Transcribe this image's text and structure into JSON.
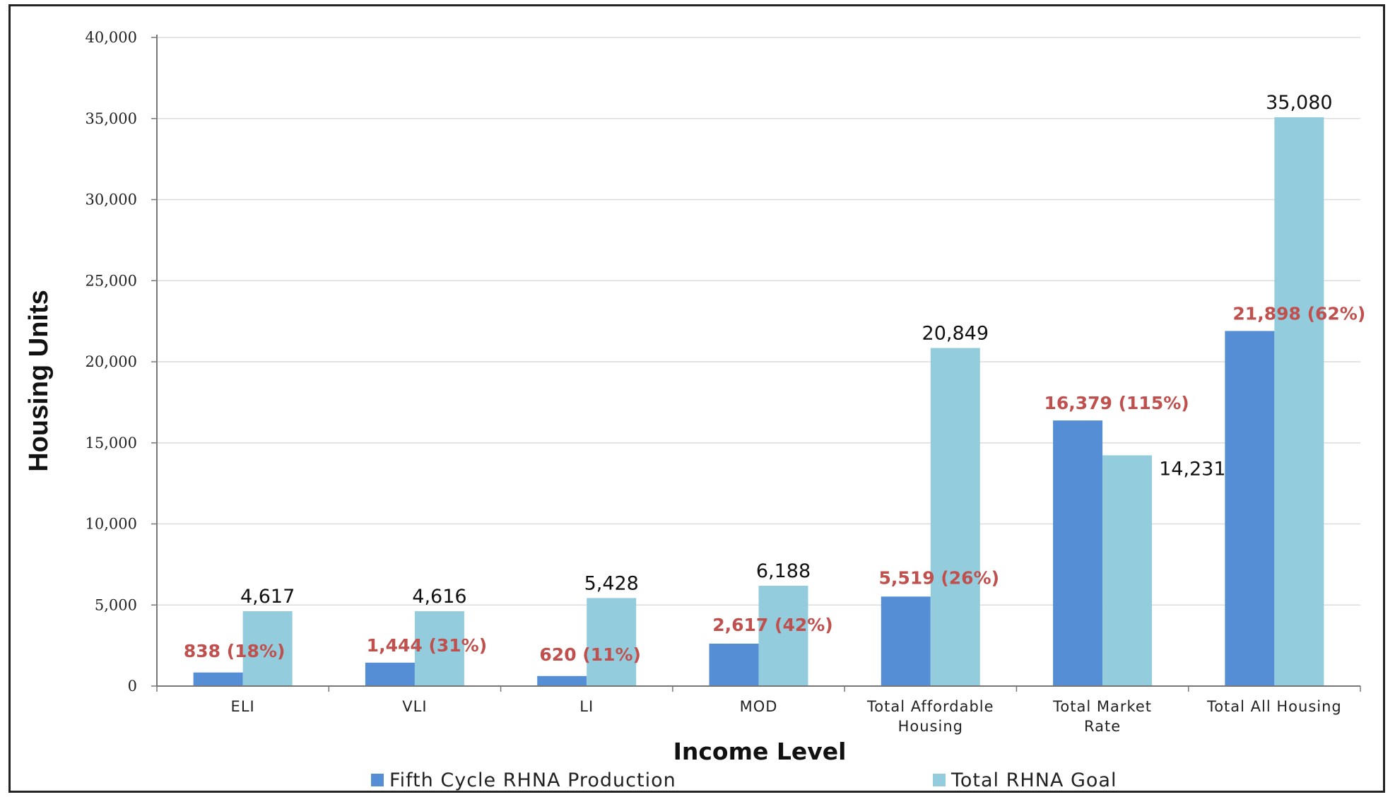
{
  "chart_data": {
    "type": "bar",
    "xlabel": "Income Level",
    "ylabel": "Housing Units",
    "ylim": [
      0,
      40000
    ],
    "yticks": [
      0,
      5000,
      10000,
      15000,
      20000,
      25000,
      30000,
      35000,
      40000
    ],
    "ytick_labels": [
      "0",
      "5,000",
      "10,000",
      "15,000",
      "20,000",
      "25,000",
      "30,000",
      "35,000",
      "40,000"
    ],
    "grid": true,
    "legend_position": "bottom",
    "categories": [
      [
        "ELI"
      ],
      [
        "VLI"
      ],
      [
        "LI"
      ],
      [
        "MOD"
      ],
      [
        "Total Affordable",
        "Housing"
      ],
      [
        "Total Market",
        "Rate"
      ],
      [
        "Total All Housing"
      ]
    ],
    "series": [
      {
        "name": "Fifth Cycle RHNA Production",
        "color": "#558ed5",
        "values": [
          838,
          1444,
          620,
          2617,
          5519,
          16379,
          21898
        ],
        "labels": [
          "838 (18%)",
          "1,444 (31%)",
          "620 (11%)",
          "2,617 (42%)",
          "5,519 (26%)",
          "16,379 (115%)",
          "21,898 (62%)"
        ],
        "label_color": "#c0504d"
      },
      {
        "name": "Total RHNA Goal",
        "color": "#93cddd",
        "values": [
          4617,
          4616,
          5428,
          6188,
          20849,
          14231,
          35080
        ],
        "labels": [
          "4,617",
          "4,616",
          "5,428",
          "6,188",
          "20,849",
          "14,231",
          "35,080"
        ],
        "label_color": "#111111"
      }
    ]
  }
}
